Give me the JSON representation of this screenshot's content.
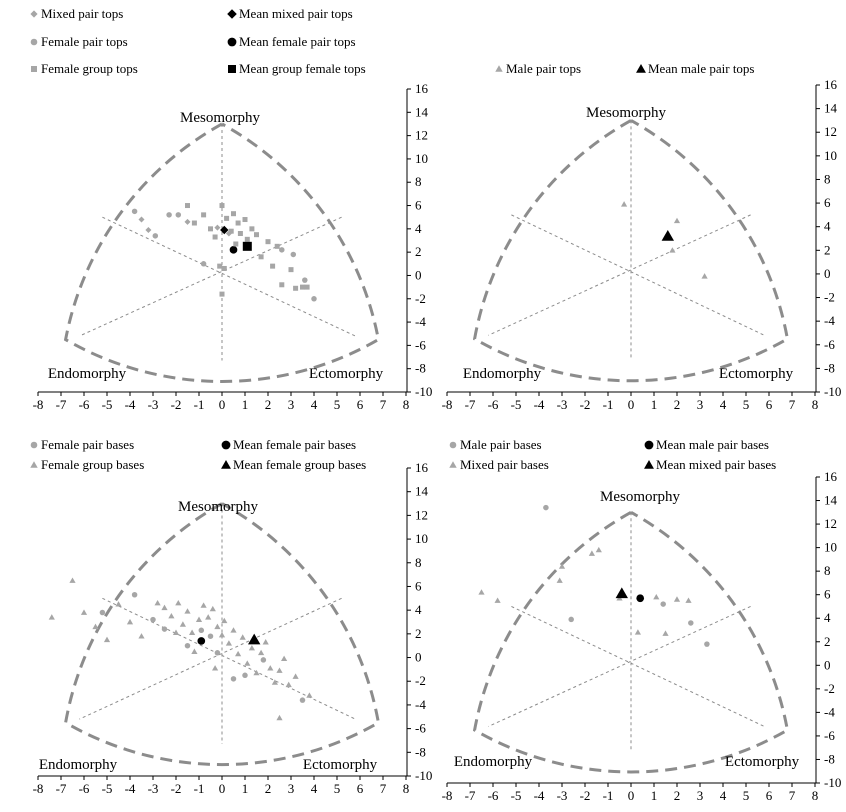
{
  "figure": {
    "colors": {
      "light": "#a6a6a6",
      "dark": "#000000",
      "frame": "#8c8c8c",
      "axis": "#000000"
    }
  },
  "chart_data": [
    {
      "type": "scatter",
      "panel": "top-left",
      "axes": {
        "x_ticks": [
          -8,
          -7,
          -6,
          -5,
          -4,
          -3,
          -2,
          -1,
          0,
          1,
          2,
          3,
          4,
          5,
          6,
          7,
          8
        ],
        "y_ticks": [
          16,
          14,
          12,
          10,
          8,
          6,
          4,
          2,
          0,
          -2,
          -4,
          -6,
          -8,
          -10
        ],
        "xlim": [
          -8,
          8
        ],
        "ylim": [
          -10,
          16
        ]
      },
      "corner_labels": {
        "top": "Mesomorphy",
        "left": "Endomorphy",
        "right": "Ectomorphy"
      },
      "legend": [
        {
          "label": "Mixed pair tops",
          "marker": "diamond",
          "color": "light"
        },
        {
          "label": "Mean mixed pair tops",
          "marker": "diamond",
          "color": "dark"
        },
        {
          "label": "Female pair tops",
          "marker": "circle",
          "color": "light"
        },
        {
          "label": "Mean female pair tops",
          "marker": "circle",
          "color": "dark"
        },
        {
          "label": "Female group tops",
          "marker": "square",
          "color": "light"
        },
        {
          "label": "Mean group female tops",
          "marker": "square",
          "color": "dark"
        }
      ],
      "series": [
        {
          "name": "Mixed pair tops",
          "marker": "diamond",
          "color": "light",
          "points": [
            [
              -3.5,
              4.8
            ],
            [
              -3.2,
              3.9
            ],
            [
              -1.5,
              4.6
            ],
            [
              0.3,
              3.6
            ],
            [
              -0.2,
              4.1
            ]
          ]
        },
        {
          "name": "Mean mixed pair tops",
          "marker": "diamond",
          "color": "dark",
          "size": 7,
          "points": [
            [
              0.1,
              3.9
            ]
          ]
        },
        {
          "name": "Female pair tops",
          "marker": "circle",
          "color": "light",
          "points": [
            [
              -3.8,
              5.5
            ],
            [
              -2.9,
              3.4
            ],
            [
              -2.3,
              5.2
            ],
            [
              -1.9,
              5.2
            ],
            [
              -0.8,
              1.0
            ],
            [
              2.6,
              2.2
            ],
            [
              3.1,
              1.8
            ],
            [
              3.6,
              -0.4
            ],
            [
              4.0,
              -2.0
            ]
          ]
        },
        {
          "name": "Mean female pair tops",
          "marker": "circle",
          "color": "dark",
          "size": 7,
          "points": [
            [
              0.5,
              2.2
            ]
          ]
        },
        {
          "name": "Female group tops",
          "marker": "square",
          "color": "light",
          "points": [
            [
              -1.5,
              6.0
            ],
            [
              -1.2,
              4.5
            ],
            [
              -0.8,
              5.2
            ],
            [
              -0.5,
              4.0
            ],
            [
              -0.3,
              3.3
            ],
            [
              0.0,
              6.0
            ],
            [
              0.2,
              4.9
            ],
            [
              0.4,
              3.8
            ],
            [
              0.5,
              5.3
            ],
            [
              0.7,
              4.5
            ],
            [
              0.8,
              3.6
            ],
            [
              1.0,
              4.8
            ],
            [
              1.1,
              3.1
            ],
            [
              1.3,
              4.0
            ],
            [
              1.5,
              3.5
            ],
            [
              0.6,
              2.7
            ],
            [
              1.7,
              1.6
            ],
            [
              2.0,
              2.9
            ],
            [
              2.2,
              0.8
            ],
            [
              2.4,
              2.5
            ],
            [
              2.6,
              -0.8
            ],
            [
              3.0,
              0.5
            ],
            [
              3.2,
              -1.1
            ],
            [
              3.5,
              -1.0
            ],
            [
              3.7,
              -1.0
            ],
            [
              0.0,
              -1.6
            ],
            [
              0.1,
              0.6
            ],
            [
              -0.1,
              0.8
            ]
          ]
        },
        {
          "name": "Mean group female tops",
          "marker": "square",
          "color": "dark",
          "size": 9,
          "points": [
            [
              1.1,
              2.5
            ]
          ]
        }
      ]
    },
    {
      "type": "scatter",
      "panel": "top-right",
      "axes": {
        "x_ticks": [
          -8,
          -7,
          -6,
          -5,
          -4,
          -3,
          -2,
          -1,
          0,
          1,
          2,
          3,
          4,
          5,
          6,
          7,
          8
        ],
        "y_ticks": [
          16,
          14,
          12,
          10,
          8,
          6,
          4,
          2,
          0,
          -2,
          -4,
          -6,
          -8,
          -10
        ],
        "xlim": [
          -8,
          8
        ],
        "ylim": [
          -10,
          16
        ]
      },
      "corner_labels": {
        "top": "Mesomorphy",
        "left": "Endomorphy",
        "right": "Ectomorphy"
      },
      "legend": [
        {
          "label": "Male pair tops",
          "marker": "triangle",
          "color": "light"
        },
        {
          "label": "Mean male pair tops",
          "marker": "triangle",
          "color": "dark"
        }
      ],
      "series": [
        {
          "name": "Male pair tops",
          "marker": "triangle",
          "color": "light",
          "points": [
            [
              -0.3,
              5.9
            ],
            [
              1.5,
              3.1
            ],
            [
              1.8,
              2.0
            ],
            [
              2.0,
              4.5
            ],
            [
              3.2,
              -0.2
            ]
          ]
        },
        {
          "name": "Mean male pair tops",
          "marker": "triangle",
          "color": "dark",
          "size": 10,
          "points": [
            [
              1.6,
              3.2
            ]
          ]
        }
      ]
    },
    {
      "type": "scatter",
      "panel": "bottom-left",
      "axes": {
        "x_ticks": [
          -8,
          -7,
          -6,
          -5,
          -4,
          -3,
          -2,
          -1,
          0,
          1,
          2,
          3,
          4,
          5,
          6,
          7,
          8
        ],
        "y_ticks": [
          16,
          14,
          12,
          10,
          8,
          6,
          4,
          2,
          0,
          -2,
          -4,
          -6,
          -8,
          -10
        ],
        "xlim": [
          -8,
          8
        ],
        "ylim": [
          -10,
          16
        ]
      },
      "corner_labels": {
        "top": "Mesomorphy",
        "left": "Endomorphy",
        "right": "Ectomorphy"
      },
      "legend": [
        {
          "label": "Female pair bases",
          "marker": "circle",
          "color": "light"
        },
        {
          "label": "Mean female pair bases",
          "marker": "circle",
          "color": "dark"
        },
        {
          "label": "Female group bases",
          "marker": "triangle",
          "color": "light"
        },
        {
          "label": "Mean female group bases",
          "marker": "triangle",
          "color": "dark"
        }
      ],
      "series": [
        {
          "name": "Female pair bases",
          "marker": "circle",
          "color": "light",
          "points": [
            [
              -5.2,
              3.8
            ],
            [
              -3.8,
              5.3
            ],
            [
              -3.0,
              3.2
            ],
            [
              -2.5,
              2.4
            ],
            [
              -1.5,
              1.0
            ],
            [
              -0.9,
              2.3
            ],
            [
              -0.5,
              1.8
            ],
            [
              0.5,
              -1.8
            ],
            [
              1.0,
              -1.5
            ],
            [
              1.8,
              -0.2
            ],
            [
              3.5,
              -3.6
            ],
            [
              -0.2,
              0.4
            ]
          ]
        },
        {
          "name": "Mean female pair bases",
          "marker": "circle",
          "color": "dark",
          "size": 7,
          "points": [
            [
              -0.9,
              1.4
            ]
          ]
        },
        {
          "name": "Female group bases",
          "marker": "triangle",
          "color": "light",
          "points": [
            [
              -7.4,
              3.4
            ],
            [
              -6.5,
              6.5
            ],
            [
              -6.0,
              3.8
            ],
            [
              -5.5,
              2.6
            ],
            [
              -5.0,
              1.5
            ],
            [
              -4.5,
              4.5
            ],
            [
              -4.0,
              3.0
            ],
            [
              -3.5,
              1.8
            ],
            [
              -2.8,
              4.6
            ],
            [
              -2.5,
              4.2
            ],
            [
              -2.2,
              3.5
            ],
            [
              -1.9,
              4.6
            ],
            [
              -1.7,
              2.8
            ],
            [
              -1.5,
              3.9
            ],
            [
              -1.3,
              2.1
            ],
            [
              -1.0,
              3.2
            ],
            [
              -0.8,
              4.4
            ],
            [
              -0.6,
              3.4
            ],
            [
              -0.4,
              4.1
            ],
            [
              -0.2,
              2.6
            ],
            [
              0.1,
              3.1
            ],
            [
              0.3,
              1.2
            ],
            [
              0.5,
              2.3
            ],
            [
              0.7,
              0.3
            ],
            [
              0.9,
              1.7
            ],
            [
              1.1,
              -0.5
            ],
            [
              1.3,
              0.8
            ],
            [
              1.5,
              -1.3
            ],
            [
              1.7,
              0.4
            ],
            [
              1.9,
              1.3
            ],
            [
              2.1,
              -0.9
            ],
            [
              2.3,
              -2.1
            ],
            [
              2.5,
              -1.1
            ],
            [
              2.7,
              -0.1
            ],
            [
              2.9,
              -2.3
            ],
            [
              2.5,
              -5.1
            ],
            [
              3.2,
              -1.6
            ],
            [
              3.8,
              -3.2
            ],
            [
              -0.3,
              -0.9
            ],
            [
              0.0,
              1.9
            ],
            [
              -1.2,
              0.5
            ],
            [
              -2.0,
              2.1
            ]
          ]
        },
        {
          "name": "Mean female group bases",
          "marker": "triangle",
          "color": "dark",
          "size": 10,
          "points": [
            [
              1.4,
              1.5
            ]
          ]
        }
      ]
    },
    {
      "type": "scatter",
      "panel": "bottom-right",
      "axes": {
        "x_ticks": [
          -8,
          -7,
          -6,
          -5,
          -4,
          -3,
          -2,
          -1,
          0,
          1,
          2,
          3,
          4,
          5,
          6,
          7,
          8
        ],
        "y_ticks": [
          16,
          14,
          12,
          10,
          8,
          6,
          4,
          2,
          0,
          -2,
          -4,
          -6,
          -8,
          -10
        ],
        "xlim": [
          -8,
          8
        ],
        "ylim": [
          -10,
          16
        ]
      },
      "corner_labels": {
        "top": "Mesomorphy",
        "left": "Endomorphy",
        "right": "Ectomorphy"
      },
      "legend": [
        {
          "label": "Male pair bases",
          "marker": "circle",
          "color": "light"
        },
        {
          "label": "Mean male pair bases",
          "marker": "circle",
          "color": "dark"
        },
        {
          "label": "Mixed pair bases",
          "marker": "triangle",
          "color": "light"
        },
        {
          "label": "Mean mixed pair bases",
          "marker": "triangle",
          "color": "dark"
        }
      ],
      "series": [
        {
          "name": "Male pair bases",
          "marker": "circle",
          "color": "light",
          "points": [
            [
              -3.7,
              13.4
            ],
            [
              -2.6,
              3.9
            ],
            [
              1.4,
              5.2
            ],
            [
              2.6,
              3.6
            ],
            [
              3.3,
              1.8
            ]
          ]
        },
        {
          "name": "Mean male pair bases",
          "marker": "circle",
          "color": "dark",
          "size": 7,
          "points": [
            [
              0.4,
              5.7
            ]
          ]
        },
        {
          "name": "Mixed pair bases",
          "marker": "triangle",
          "color": "light",
          "points": [
            [
              -6.5,
              6.2
            ],
            [
              -5.8,
              5.5
            ],
            [
              -3.0,
              8.4
            ],
            [
              -3.1,
              7.2
            ],
            [
              -1.7,
              9.5
            ],
            [
              -1.4,
              9.8
            ],
            [
              -0.5,
              5.7
            ],
            [
              0.3,
              2.8
            ],
            [
              1.1,
              5.8
            ],
            [
              1.5,
              2.7
            ],
            [
              2.0,
              5.6
            ],
            [
              2.5,
              5.5
            ]
          ]
        },
        {
          "name": "Mean mixed pair bases",
          "marker": "triangle",
          "color": "dark",
          "size": 10,
          "points": [
            [
              -0.4,
              6.1
            ]
          ]
        }
      ]
    }
  ]
}
